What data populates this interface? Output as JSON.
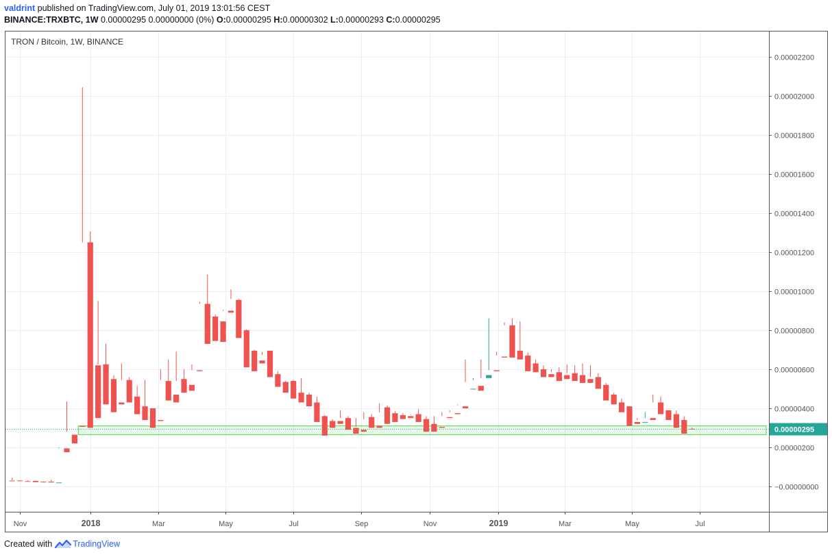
{
  "header": {
    "author": "valdrint",
    "published": "published on TradingView.com, July 01, 2019 13:01:56 CEST",
    "symbol": "BINANCE:TRXBTC, 1W",
    "summary_prefix": "0.00000295 0.00000000 (0%)",
    "o_label": "O:",
    "o_value": "0.00000295",
    "h_label": "H:",
    "h_value": "0.00000302",
    "l_label": "L:",
    "l_value": "0.00000293",
    "c_label": "C:",
    "c_value": "0.00000295"
  },
  "footer": {
    "created_with": "Created with",
    "brand": "TradingView"
  },
  "colors": {
    "up": "#26a69a",
    "down": "#ef5350",
    "grid": "#e9eef5",
    "price_line": "#26a69a",
    "zone": "#66dd66",
    "axis_text": "#555555"
  },
  "chart_data": {
    "type": "candlestick",
    "title": "TRON / Bitcoin, 1W, BINANCE",
    "y_ticks": [
      "0.00002200",
      "0.00002000",
      "0.00001800",
      "0.00001600",
      "0.00001400",
      "0.00001200",
      "0.00001000",
      "0.00000800",
      "0.00000600",
      "0.00000400",
      "0.00000200",
      "−0.00000000"
    ],
    "y_tick_values": [
      22,
      20,
      18,
      16,
      14,
      12,
      10,
      8,
      6,
      4,
      2,
      0
    ],
    "y_unit_scale": 1e-07,
    "ylim": [
      -1.3,
      23.3
    ],
    "x_ticks": [
      {
        "label": "Nov",
        "week": 1,
        "bold": false
      },
      {
        "label": "2018",
        "week": 10,
        "bold": true
      },
      {
        "label": "Mar",
        "week": 18.7,
        "bold": false
      },
      {
        "label": "May",
        "week": 27.3,
        "bold": false
      },
      {
        "label": "Jul",
        "week": 36,
        "bold": false
      },
      {
        "label": "Sep",
        "week": 44.7,
        "bold": false
      },
      {
        "label": "Nov",
        "week": 53.4,
        "bold": false
      },
      {
        "label": "2019",
        "week": 62.2,
        "bold": true
      },
      {
        "label": "Mar",
        "week": 70.7,
        "bold": false
      },
      {
        "label": "May",
        "week": 79.3,
        "bold": false
      },
      {
        "label": "Jul",
        "week": 88,
        "bold": false
      }
    ],
    "x_range_weeks": [
      -0.85,
      96.85
    ],
    "support_zone": {
      "from": 2.65,
      "to": 3.1,
      "week_start": 9,
      "week_end": 96.5
    },
    "last_price": {
      "label": "0.00000295",
      "value": 2.95
    },
    "candles": [
      [
        0.3,
        0.45,
        0.32,
        0.28
      ],
      [
        0.3,
        0.31,
        0.28,
        0.27
      ],
      [
        0.27,
        0.3,
        0.26,
        0.24
      ],
      [
        0.28,
        0.3,
        0.24,
        0.22
      ],
      [
        0.24,
        0.26,
        0.23,
        0.21
      ],
      [
        0.24,
        0.35,
        0.23,
        0.2
      ],
      [
        0.2,
        1.95,
        2.0,
        0.2
      ],
      [
        1.95,
        4.35,
        2.8,
        1.75
      ],
      [
        2.65,
        3.25,
        3.25,
        2.2
      ],
      [
        3.1,
        20.45,
        12.5,
        3.05
      ],
      [
        12.5,
        13.05,
        6.2,
        3.0
      ],
      [
        6.2,
        9.5,
        6.25,
        3.5
      ],
      [
        6.25,
        7.3,
        5.5,
        4.2
      ],
      [
        5.5,
        5.7,
        4.2,
        3.8
      ],
      [
        4.3,
        6.3,
        5.45,
        4.2
      ],
      [
        5.45,
        5.6,
        4.5,
        4.3
      ],
      [
        4.6,
        5.15,
        4.1,
        3.7
      ],
      [
        4.1,
        5.45,
        4.0,
        3.4
      ],
      [
        4.0,
        4.0,
        3.4,
        3.0
      ],
      [
        3.4,
        6.0,
        5.45,
        3.35
      ],
      [
        5.4,
        6.5,
        4.7,
        4.4
      ],
      [
        4.7,
        6.9,
        5.4,
        4.3
      ],
      [
        5.5,
        6.0,
        5.15,
        4.8
      ],
      [
        5.2,
        6.25,
        5.95,
        4.9
      ],
      [
        5.95,
        9.45,
        9.35,
        5.9
      ],
      [
        9.35,
        10.85,
        8.75,
        7.3
      ],
      [
        8.7,
        8.8,
        8.25,
        7.45
      ],
      [
        8.45,
        9.05,
        9.0,
        7.4
      ],
      [
        9.0,
        10.1,
        9.6,
        8.9
      ],
      [
        9.55,
        9.6,
        8.0,
        7.6
      ],
      [
        8.0,
        8.05,
        6.95,
        6.1
      ],
      [
        6.95,
        7.0,
        6.45,
        5.9
      ],
      [
        6.45,
        6.9,
        6.75,
        6.3
      ],
      [
        6.95,
        6.95,
        5.75,
        5.6
      ],
      [
        5.75,
        5.9,
        5.4,
        5.1
      ],
      [
        5.35,
        5.4,
        5.3,
        4.8
      ],
      [
        5.4,
        5.45,
        4.8,
        4.5
      ],
      [
        4.8,
        5.55,
        4.7,
        4.3
      ],
      [
        4.7,
        4.8,
        4.25,
        4.1
      ],
      [
        4.3,
        4.6,
        3.35,
        3.3
      ],
      [
        3.6,
        3.65,
        3.4,
        2.6
      ],
      [
        3.35,
        3.45,
        3.3,
        3.0
      ],
      [
        3.35,
        3.9,
        3.5,
        3.2
      ],
      [
        3.5,
        3.6,
        3.1,
        2.9
      ],
      [
        3.0,
        3.5,
        3.05,
        2.7
      ],
      [
        2.9,
        3.8,
        3.45,
        2.8
      ],
      [
        3.55,
        3.7,
        3.1,
        3.0
      ],
      [
        3.1,
        4.25,
        3.8,
        3.0
      ],
      [
        4.05,
        4.15,
        3.6,
        3.2
      ],
      [
        3.75,
        3.85,
        3.6,
        3.3
      ],
      [
        3.65,
        3.75,
        3.55,
        3.45
      ],
      [
        3.6,
        3.65,
        3.68,
        3.5
      ],
      [
        3.7,
        3.95,
        3.4,
        3.3
      ],
      [
        3.45,
        3.6,
        3.0,
        2.8
      ],
      [
        3.2,
        3.6,
        3.05,
        2.8
      ],
      [
        3.05,
        3.8,
        3.6,
        3.0
      ],
      [
        3.55,
        3.9,
        3.8,
        3.5
      ],
      [
        3.75,
        4.2,
        4.15,
        3.7
      ],
      [
        4.1,
        6.5,
        5.35,
        4.0
      ],
      [
        5.0,
        5.55,
        5.45,
        5.0
      ],
      [
        5.15,
        6.5,
        5.55,
        4.9
      ],
      [
        5.55,
        8.6,
        5.95,
        5.7
      ],
      [
        5.95,
        6.9,
        6.7,
        5.9
      ],
      [
        6.65,
        8.4,
        8.25,
        6.6
      ],
      [
        8.25,
        8.6,
        6.95,
        6.6
      ],
      [
        6.95,
        8.45,
        6.7,
        6.5
      ],
      [
        6.7,
        6.85,
        6.0,
        5.9
      ],
      [
        6.3,
        6.5,
        6.0,
        5.85
      ],
      [
        6.0,
        6.2,
        5.75,
        5.6
      ],
      [
        5.75,
        6.0,
        5.85,
        5.6
      ],
      [
        5.85,
        6.1,
        5.6,
        5.4
      ],
      [
        5.7,
        6.25,
        5.8,
        5.5
      ],
      [
        5.8,
        6.2,
        5.5,
        5.4
      ],
      [
        5.7,
        6.3,
        5.45,
        5.3
      ],
      [
        5.5,
        6.2,
        5.6,
        5.3
      ],
      [
        5.6,
        5.8,
        5.2,
        5.0
      ],
      [
        5.2,
        5.3,
        4.5,
        4.4
      ],
      [
        4.7,
        4.8,
        4.3,
        4.2
      ],
      [
        4.3,
        4.5,
        3.9,
        3.8
      ],
      [
        4.1,
        4.1,
        3.2,
        3.1
      ],
      [
        3.3,
        3.5,
        3.4,
        3.2
      ],
      [
        3.3,
        3.8,
        3.5,
        3.3
      ],
      [
        3.5,
        4.7,
        4.3,
        3.4
      ],
      [
        4.3,
        4.6,
        3.9,
        3.7
      ],
      [
        3.9,
        3.9,
        3.5,
        3.4
      ],
      [
        3.7,
        3.9,
        3.2,
        3.0
      ],
      [
        3.4,
        3.6,
        3.0,
        2.7
      ],
      [
        2.95,
        3.02,
        2.95,
        2.93
      ]
    ]
  }
}
